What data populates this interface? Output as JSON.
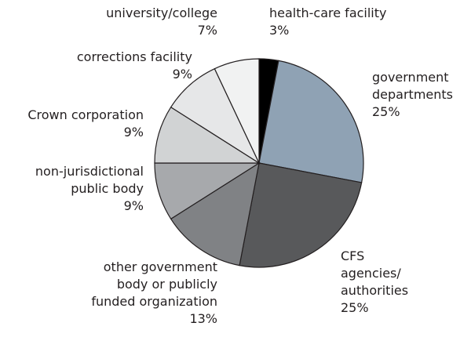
{
  "chart_data": {
    "type": "pie",
    "categories": [
      "health-care facility",
      "government departments",
      "CFS agencies/ authorities",
      "other government body or publicly funded organization",
      "non-jurisdictional public body",
      "Crown corporation",
      "corrections facility",
      "university/college"
    ],
    "values": [
      3,
      25,
      25,
      13,
      9,
      9,
      9,
      7
    ],
    "value_labels": [
      "3%",
      "25%",
      "25%",
      "13%",
      "9%",
      "9%",
      "9%",
      "7%"
    ],
    "colors": [
      "#000000",
      "#8fa2b4",
      "#58595b",
      "#808285",
      "#a7a9ac",
      "#d1d3d4",
      "#e6e7e8",
      "#f1f2f2"
    ]
  }
}
